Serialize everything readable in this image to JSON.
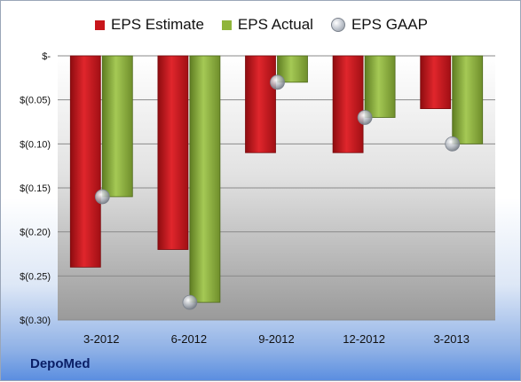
{
  "chart_data": {
    "type": "bar",
    "categories": [
      "3-2012",
      "6-2012",
      "9-2012",
      "12-2012",
      "3-2013"
    ],
    "series": [
      {
        "name": "EPS Estimate",
        "values": [
          -0.24,
          -0.22,
          -0.11,
          -0.11,
          -0.06
        ],
        "color": "#c8151b"
      },
      {
        "name": "EPS Actual",
        "values": [
          -0.16,
          -0.28,
          -0.03,
          -0.07,
          -0.1
        ],
        "color": "#8fb53a"
      },
      {
        "name": "EPS GAAP",
        "values": [
          -0.16,
          -0.28,
          -0.03,
          -0.07,
          -0.1
        ],
        "marker": "sphere"
      }
    ],
    "ylim": [
      -0.3,
      0
    ],
    "yticks": [
      {
        "value": 0,
        "label": "$-"
      },
      {
        "value": -0.05,
        "label": "$(0.05)"
      },
      {
        "value": -0.1,
        "label": "$(0.10)"
      },
      {
        "value": -0.15,
        "label": "$(0.15)"
      },
      {
        "value": -0.2,
        "label": "$(0.20)"
      },
      {
        "value": -0.25,
        "label": "$(0.25)"
      },
      {
        "value": -0.3,
        "label": "$(0.30)"
      }
    ],
    "grid": true,
    "legend_position": "top",
    "company": "DepoMed"
  }
}
